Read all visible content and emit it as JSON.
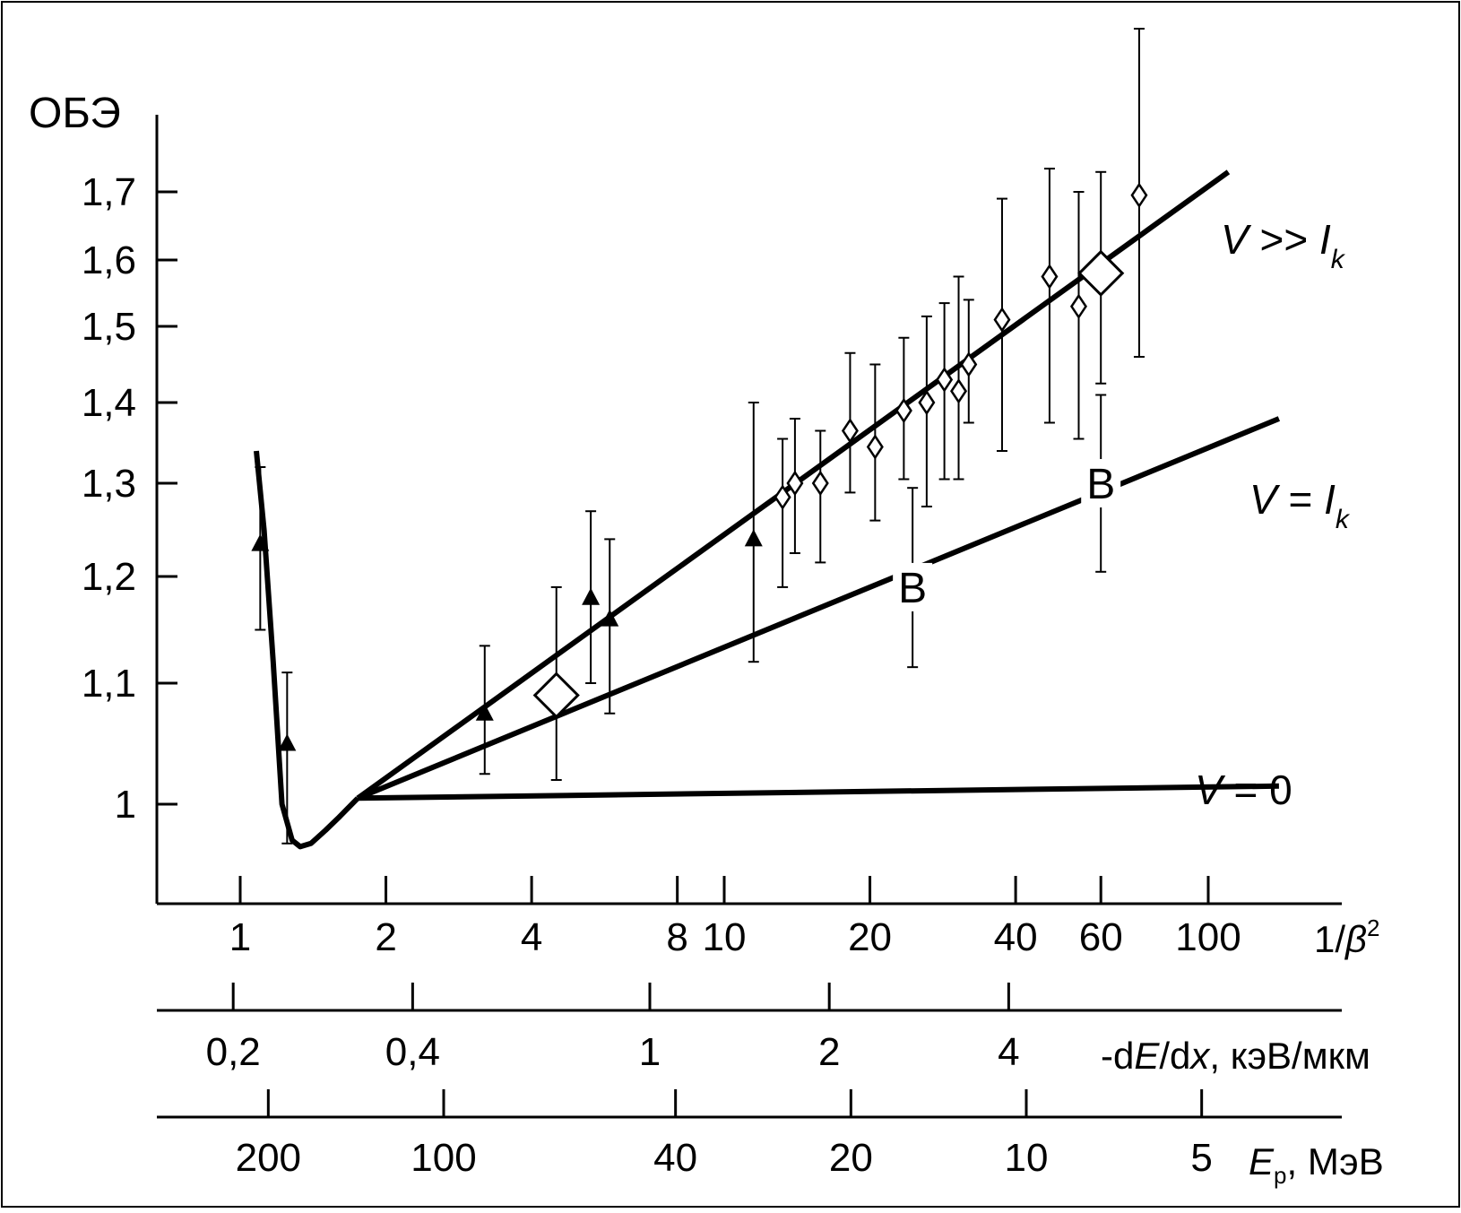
{
  "chart_data": {
    "type": "scatter",
    "ylabel": "ОБЭ",
    "y_ticks": [
      "1",
      "1,1",
      "1,2",
      "1,3",
      "1,4",
      "1,5",
      "1,6",
      "1,7"
    ],
    "y_tick_values": [
      1.0,
      1.1,
      1.2,
      1.3,
      1.4,
      1.5,
      1.6,
      1.7
    ],
    "ylim": [
      0.96,
      1.86
    ],
    "x_scale": "log",
    "axes": [
      {
        "label_parts": [
          "1/",
          "β",
          "2"
        ],
        "ticks": [
          {
            "label": "1",
            "value": 1
          },
          {
            "label": "2",
            "value": 2
          },
          {
            "label": "4",
            "value": 4
          },
          {
            "label": "8",
            "value": 8
          },
          {
            "label": "10",
            "value": 10
          },
          {
            "label": "20",
            "value": 20
          },
          {
            "label": "40",
            "value": 40
          },
          {
            "label": "60",
            "value": 60
          },
          {
            "label": "100",
            "value": 100
          }
        ]
      },
      {
        "label_parts": [
          "-d",
          "E",
          "/d",
          "x",
          ", кэВ/мкм"
        ],
        "ticks": [
          {
            "label": "0,2",
            "value": 0.2
          },
          {
            "label": "0,4",
            "value": 0.4
          },
          {
            "label": "1",
            "value": 1
          },
          {
            "label": "2",
            "value": 2
          },
          {
            "label": "4",
            "value": 4
          }
        ]
      },
      {
        "label_parts": [
          "E",
          "р",
          ", МэВ"
        ],
        "ticks": [
          {
            "label": "200",
            "value": 200
          },
          {
            "label": "100",
            "value": 100
          },
          {
            "label": "40",
            "value": 40
          },
          {
            "label": "20",
            "value": 20
          },
          {
            "label": "10",
            "value": 10
          },
          {
            "label": "5",
            "value": 5
          }
        ]
      }
    ],
    "curves": [
      {
        "label_parts": [
          "V",
          " >> ",
          "I",
          "k"
        ],
        "x": [
          1.75,
          110
        ],
        "y": [
          1.005,
          1.73
        ]
      },
      {
        "label_parts": [
          "V",
          " = ",
          "I",
          "k"
        ],
        "x": [
          1.75,
          140
        ],
        "y": [
          1.005,
          1.38
        ]
      },
      {
        "label_parts": [
          "V",
          " = 0"
        ],
        "x": [
          1.75,
          140
        ],
        "y": [
          1.005,
          1.015
        ]
      },
      {
        "label_parts": [],
        "x": [
          1.08,
          1.12,
          1.17,
          1.22,
          1.28,
          1.33,
          1.4,
          1.5,
          1.6,
          1.75
        ],
        "y": [
          1.34,
          1.25,
          1.12,
          1.0,
          0.945,
          0.935,
          0.94,
          0.96,
          0.98,
          1.005
        ]
      }
    ],
    "markers_B": [
      {
        "label": "B",
        "x": 24.5,
        "y": 1.19
      },
      {
        "label": "B",
        "x": 60,
        "y": 1.3
      }
    ],
    "series": [
      {
        "marker": "filled-triangle",
        "points": [
          {
            "x": 1.1,
            "y": 1.235,
            "lo": 1.15,
            "hi": 1.32
          },
          {
            "x": 1.25,
            "y": 1.05,
            "lo": 0.94,
            "hi": 1.11
          },
          {
            "x": 3.2,
            "y": 1.075,
            "lo": 1.025,
            "hi": 1.135
          },
          {
            "x": 5.3,
            "y": 1.18,
            "lo": 1.1,
            "hi": 1.27
          },
          {
            "x": 5.8,
            "y": 1.16,
            "lo": 1.075,
            "hi": 1.24
          },
          {
            "x": 11.5,
            "y": 1.24,
            "lo": 1.12,
            "hi": 1.4
          }
        ]
      },
      {
        "marker": "open-diamond",
        "points": [
          {
            "x": 13.2,
            "y": 1.285,
            "lo": 1.19,
            "hi": 1.355
          },
          {
            "x": 14,
            "y": 1.3,
            "lo": 1.225,
            "hi": 1.38
          },
          {
            "x": 15.8,
            "y": 1.3,
            "lo": 1.215,
            "hi": 1.365
          },
          {
            "x": 18.2,
            "y": 1.365,
            "lo": 1.29,
            "hi": 1.465
          },
          {
            "x": 20.5,
            "y": 1.345,
            "lo": 1.26,
            "hi": 1.45
          },
          {
            "x": 23.5,
            "y": 1.39,
            "lo": 1.305,
            "hi": 1.485
          },
          {
            "x": 26.2,
            "y": 1.4,
            "lo": 1.275,
            "hi": 1.515
          },
          {
            "x": 28.5,
            "y": 1.43,
            "lo": 1.305,
            "hi": 1.535
          },
          {
            "x": 30.5,
            "y": 1.415,
            "lo": 1.305,
            "hi": 1.575
          },
          {
            "x": 32,
            "y": 1.45,
            "lo": 1.375,
            "hi": 1.54
          },
          {
            "x": 37.5,
            "y": 1.51,
            "lo": 1.34,
            "hi": 1.69
          },
          {
            "x": 47,
            "y": 1.575,
            "lo": 1.375,
            "hi": 1.735
          },
          {
            "x": 54,
            "y": 1.53,
            "lo": 1.355,
            "hi": 1.7
          },
          {
            "x": 72,
            "y": 1.695,
            "lo": 1.46,
            "hi": 1.95
          }
        ]
      },
      {
        "marker": "large-open-diamond",
        "points": [
          {
            "x": 4.5,
            "y": 1.09,
            "lo": 1.02,
            "hi": 1.19
          },
          {
            "x": 60,
            "y": 1.58,
            "lo": 1.425,
            "hi": 1.73
          }
        ]
      },
      {
        "marker": "none",
        "points": [
          {
            "x": 24.5,
            "y": 1.19,
            "lo": 1.115,
            "hi": 1.295
          },
          {
            "x": 60,
            "y": 1.3,
            "lo": 1.205,
            "hi": 1.41
          }
        ]
      }
    ]
  }
}
